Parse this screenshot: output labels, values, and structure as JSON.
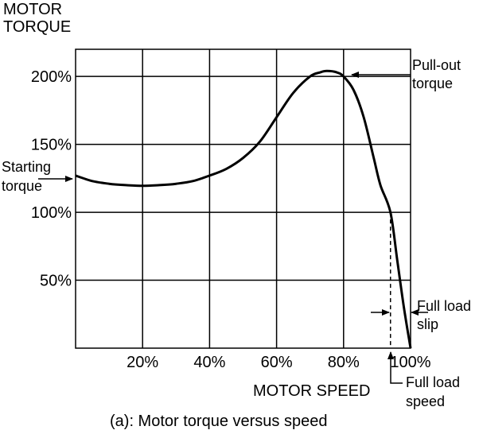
{
  "chart_data": {
    "type": "line",
    "title": "",
    "caption": "(a):  Motor torque versus speed",
    "ylabel": [
      "MOTOR",
      "TORQUE"
    ],
    "xlabel": "MOTOR SPEED",
    "xlim": [
      0,
      100
    ],
    "ylim": [
      0,
      220
    ],
    "grid": true,
    "x_ticks": [
      20,
      40,
      60,
      80,
      100
    ],
    "x_tick_labels": [
      "20%",
      "40%",
      "60%",
      "80%",
      "100%"
    ],
    "y_ticks": [
      50,
      100,
      150,
      200
    ],
    "y_tick_labels": [
      "50%",
      "100%",
      "150%",
      "200%"
    ],
    "series": [
      {
        "x": [
          0,
          5,
          10,
          15,
          20,
          25,
          30,
          35,
          40,
          45,
          50,
          55,
          60,
          65,
          70,
          73,
          75,
          78,
          80,
          83,
          86,
          89,
          91,
          94,
          96,
          98,
          100
        ],
        "y": [
          127,
          123,
          121,
          120,
          119.5,
          120,
          121,
          123,
          127,
          132,
          140,
          152,
          170,
          188,
          200,
          203,
          204,
          203,
          200,
          190,
          170,
          140,
          120,
          100,
          65,
          30,
          0
        ]
      }
    ],
    "full_load": {
      "speed": 94,
      "torque": 100
    },
    "annotations": {
      "starting_torque": [
        "Starting",
        "torque"
      ],
      "pullout_torque": [
        "Pull-out",
        "torque"
      ],
      "full_load_slip": [
        "Full load",
        "slip"
      ],
      "full_load_speed": [
        "Full load",
        "speed"
      ]
    }
  }
}
